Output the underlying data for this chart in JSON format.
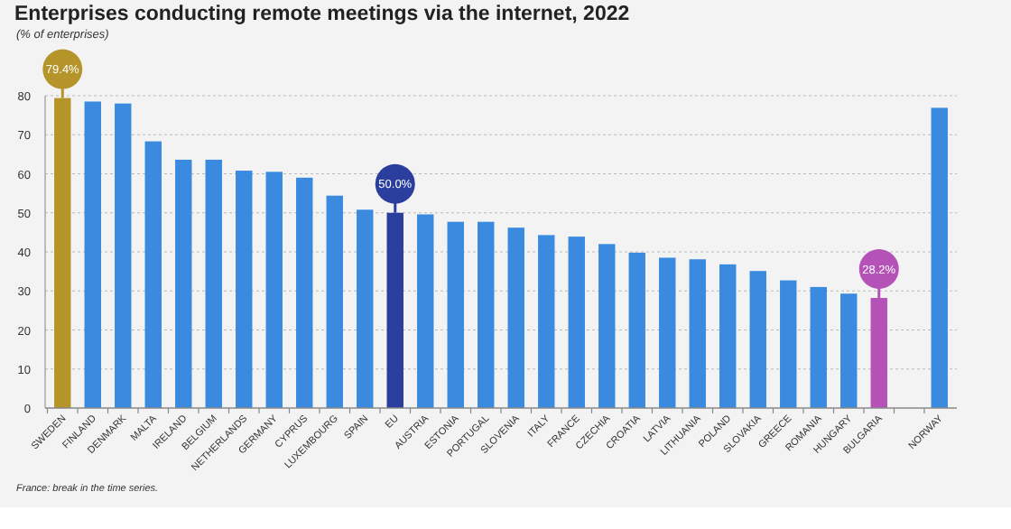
{
  "chart_data": {
    "type": "bar",
    "title": "Enterprises conducting remote meetings via the internet, 2022",
    "subtitle": "(% of enterprises)",
    "categories": [
      "SWEDEN",
      "FINLAND",
      "DENMARK",
      "MALTA",
      "IRELAND",
      "BELGIUM",
      "NETHERLANDS",
      "GERMANY",
      "CYPRUS",
      "LUXEMBOURG",
      "SPAIN",
      "EU",
      "AUSTRIA",
      "ESTONIA",
      "PORTUGAL",
      "SLOVENIA",
      "ITALY",
      "FRANCE",
      "CZECHIA",
      "CROATIA",
      "LATVIA",
      "LITHUANIA",
      "POLAND",
      "SLOVAKIA",
      "GREECE",
      "ROMANIA",
      "HUNGARY",
      "BULGARIA",
      null,
      "NORWAY"
    ],
    "values": [
      79.4,
      78.5,
      78.0,
      68.3,
      63.6,
      63.6,
      60.8,
      60.5,
      59.0,
      54.4,
      50.8,
      50.0,
      49.6,
      47.7,
      47.7,
      46.2,
      44.3,
      43.9,
      42.0,
      39.8,
      38.5,
      38.1,
      36.8,
      35.1,
      32.7,
      31.0,
      29.3,
      28.2,
      null,
      76.9
    ],
    "colors": [
      "#b5952a",
      "#3a8ae0",
      "#3a8ae0",
      "#3a8ae0",
      "#3a8ae0",
      "#3a8ae0",
      "#3a8ae0",
      "#3a8ae0",
      "#3a8ae0",
      "#3a8ae0",
      "#3a8ae0",
      "#2a3e9e",
      "#3a8ae0",
      "#3a8ae0",
      "#3a8ae0",
      "#3a8ae0",
      "#3a8ae0",
      "#3a8ae0",
      "#3a8ae0",
      "#3a8ae0",
      "#3a8ae0",
      "#3a8ae0",
      "#3a8ae0",
      "#3a8ae0",
      "#3a8ae0",
      "#3a8ae0",
      "#3a8ae0",
      "#b452b8",
      null,
      "#3a8ae0"
    ],
    "value_labels": [
      "79.4%",
      null,
      null,
      null,
      null,
      null,
      null,
      null,
      null,
      null,
      null,
      "50.0%",
      null,
      null,
      null,
      null,
      null,
      null,
      null,
      null,
      null,
      null,
      null,
      null,
      null,
      null,
      null,
      "28.2%",
      null,
      null
    ],
    "ylim": [
      0,
      80
    ],
    "yticks": [
      0,
      10,
      20,
      30,
      40,
      50,
      60,
      70,
      80
    ],
    "grid": "y",
    "annotations": [
      "France: break in the time series."
    ]
  }
}
